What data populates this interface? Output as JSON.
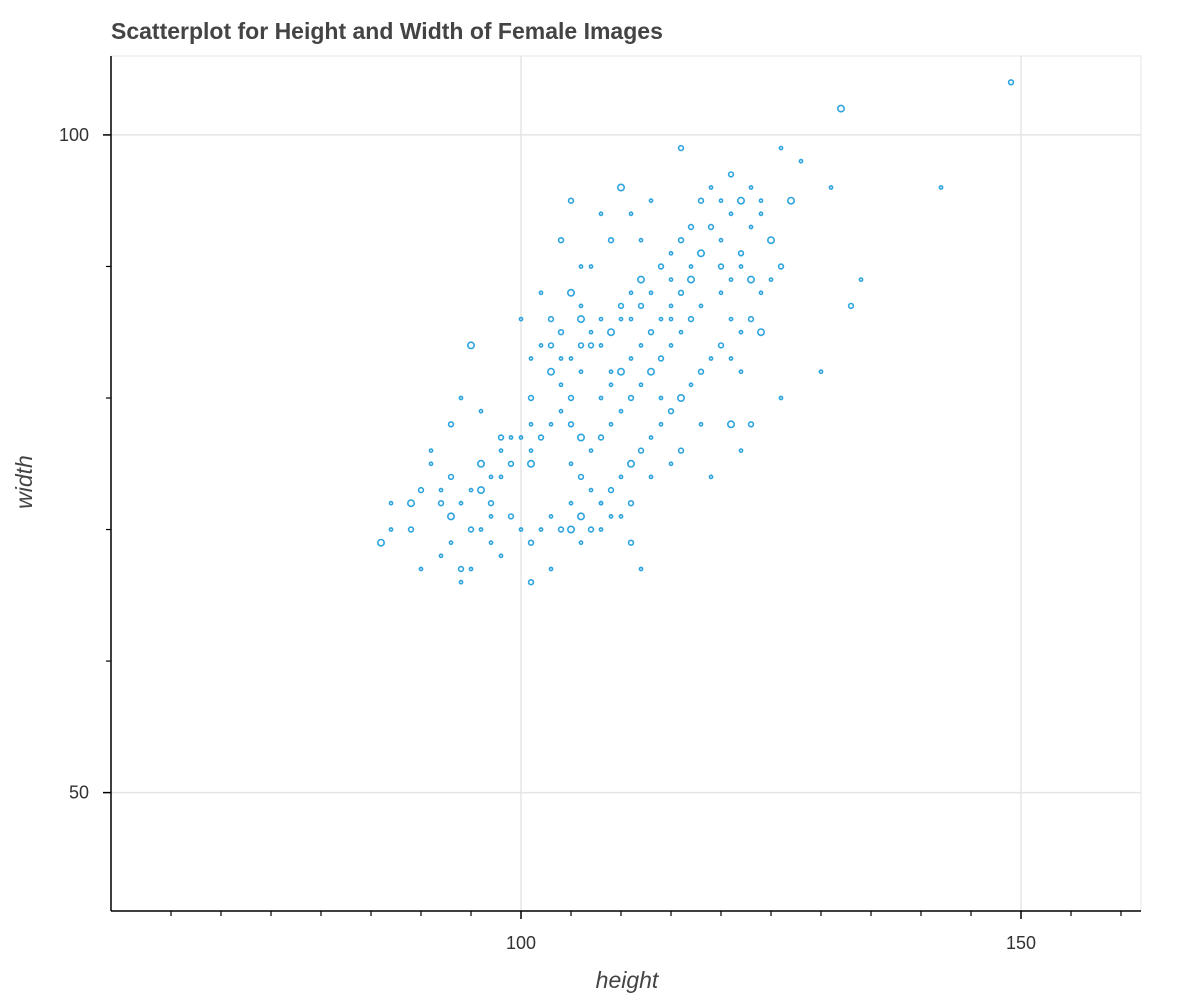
{
  "chart_data": {
    "type": "scatter",
    "title": "Scatterplot for Height and Width of Female Images",
    "xlabel": "height",
    "ylabel": "width",
    "xlim": [
      59,
      162
    ],
    "ylim": [
      41,
      106
    ],
    "x_major_ticks": [
      100,
      150
    ],
    "x_tick_labels": [
      "100",
      "150"
    ],
    "x_minor_ticks": [
      65,
      70,
      75,
      80,
      85,
      90,
      95,
      105,
      110,
      115,
      120,
      125,
      130,
      135,
      140,
      145,
      155,
      160
    ],
    "y_major_ticks": [
      50,
      100
    ],
    "y_tick_labels": [
      "50",
      "100"
    ],
    "y_minor_ticks": [
      60,
      70,
      80,
      90,
      110,
      120
    ],
    "grid": true,
    "marker_color": "#2ea4de",
    "notes": "Dense clusters of overlapping circles between heights ~93-122 and widths ~72-96",
    "points": [
      [
        86,
        69
      ],
      [
        87,
        72
      ],
      [
        87,
        70
      ],
      [
        89,
        70
      ],
      [
        90,
        67
      ],
      [
        92,
        68
      ],
      [
        92,
        72
      ],
      [
        93,
        71
      ],
      [
        93,
        69
      ],
      [
        94,
        67
      ],
      [
        94,
        66
      ],
      [
        95,
        67
      ],
      [
        95,
        70
      ],
      [
        96,
        70
      ],
      [
        96,
        73
      ],
      [
        97,
        72
      ],
      [
        97,
        71
      ],
      [
        98,
        74
      ],
      [
        98,
        77
      ],
      [
        99,
        77
      ],
      [
        100,
        77
      ],
      [
        101,
        75
      ],
      [
        101,
        76
      ],
      [
        101,
        78
      ],
      [
        101,
        80
      ],
      [
        101,
        83
      ],
      [
        102,
        84
      ],
      [
        103,
        84
      ],
      [
        103,
        82
      ],
      [
        104,
        83
      ],
      [
        104,
        85
      ],
      [
        104,
        81
      ],
      [
        105,
        83
      ],
      [
        105,
        80
      ],
      [
        106,
        82
      ],
      [
        106,
        86
      ],
      [
        106,
        84
      ],
      [
        106,
        87
      ],
      [
        107,
        85
      ],
      [
        107,
        84
      ],
      [
        108,
        86
      ],
      [
        108,
        84
      ],
      [
        109,
        85
      ],
      [
        109,
        82
      ],
      [
        110,
        86
      ],
      [
        110,
        87
      ],
      [
        111,
        86
      ],
      [
        111,
        88
      ],
      [
        112,
        87
      ],
      [
        112,
        89
      ],
      [
        113,
        88
      ],
      [
        114,
        90
      ],
      [
        115,
        91
      ],
      [
        115,
        89
      ],
      [
        116,
        92
      ],
      [
        117,
        90
      ],
      [
        118,
        91
      ],
      [
        119,
        93
      ],
      [
        120,
        92
      ],
      [
        121,
        94
      ],
      [
        122,
        91
      ],
      [
        123,
        93
      ],
      [
        124,
        94
      ],
      [
        125,
        92
      ],
      [
        120,
        88
      ],
      [
        118,
        87
      ],
      [
        117,
        86
      ],
      [
        116,
        85
      ],
      [
        115,
        84
      ],
      [
        114,
        83
      ],
      [
        113,
        82
      ],
      [
        112,
        81
      ],
      [
        111,
        80
      ],
      [
        110,
        79
      ],
      [
        109,
        78
      ],
      [
        108,
        77
      ],
      [
        107,
        76
      ],
      [
        106,
        77
      ],
      [
        105,
        78
      ],
      [
        104,
        79
      ],
      [
        103,
        78
      ],
      [
        102,
        77
      ],
      [
        108,
        80
      ],
      [
        109,
        81
      ],
      [
        110,
        82
      ],
      [
        111,
        83
      ],
      [
        112,
        84
      ],
      [
        113,
        85
      ],
      [
        114,
        86
      ],
      [
        115,
        87
      ],
      [
        116,
        88
      ],
      [
        117,
        89
      ],
      [
        105,
        75
      ],
      [
        106,
        74
      ],
      [
        107,
        73
      ],
      [
        108,
        72
      ],
      [
        109,
        73
      ],
      [
        110,
        74
      ],
      [
        111,
        75
      ],
      [
        112,
        76
      ],
      [
        113,
        77
      ],
      [
        114,
        78
      ],
      [
        99,
        75
      ],
      [
        98,
        76
      ],
      [
        97,
        74
      ],
      [
        96,
        75
      ],
      [
        95,
        73
      ],
      [
        94,
        72
      ],
      [
        93,
        74
      ],
      [
        92,
        73
      ],
      [
        91,
        75
      ],
      [
        90,
        73
      ],
      [
        89,
        72
      ],
      [
        100,
        70
      ],
      [
        101,
        69
      ],
      [
        102,
        70
      ],
      [
        103,
        71
      ],
      [
        104,
        70
      ],
      [
        105,
        72
      ],
      [
        106,
        71
      ],
      [
        107,
        70
      ],
      [
        108,
        72
      ],
      [
        109,
        71
      ],
      [
        120,
        90
      ],
      [
        121,
        89
      ],
      [
        122,
        90
      ],
      [
        123,
        89
      ],
      [
        124,
        88
      ],
      [
        125,
        89
      ],
      [
        126,
        90
      ],
      [
        121,
        86
      ],
      [
        122,
        85
      ],
      [
        123,
        86
      ],
      [
        124,
        85
      ],
      [
        119,
        83
      ],
      [
        120,
        84
      ],
      [
        121,
        83
      ],
      [
        122,
        82
      ],
      [
        118,
        82
      ],
      [
        117,
        81
      ],
      [
        116,
        80
      ],
      [
        115,
        79
      ],
      [
        114,
        80
      ],
      [
        119,
        96
      ],
      [
        121,
        97
      ],
      [
        123,
        96
      ],
      [
        124,
        95
      ],
      [
        127,
        95
      ],
      [
        128,
        98
      ],
      [
        131,
        96
      ],
      [
        133,
        87
      ],
      [
        134,
        89
      ],
      [
        142,
        96
      ],
      [
        149,
        104
      ],
      [
        132,
        102
      ],
      [
        126,
        99
      ],
      [
        116,
        99
      ],
      [
        126,
        80
      ],
      [
        130,
        82
      ],
      [
        118,
        95
      ],
      [
        112,
        92
      ],
      [
        110,
        96
      ],
      [
        105,
        95
      ],
      [
        102,
        88
      ],
      [
        106,
        90
      ],
      [
        104,
        92
      ],
      [
        108,
        94
      ],
      [
        115,
        86
      ],
      [
        95,
        84
      ],
      [
        96,
        79
      ],
      [
        94,
        80
      ],
      [
        93,
        78
      ],
      [
        91,
        76
      ],
      [
        100,
        86
      ],
      [
        103,
        86
      ],
      [
        105,
        88
      ],
      [
        107,
        90
      ],
      [
        109,
        92
      ],
      [
        111,
        94
      ],
      [
        113,
        95
      ],
      [
        117,
        93
      ],
      [
        120,
        95
      ],
      [
        122,
        95
      ],
      [
        101,
        66
      ],
      [
        103,
        67
      ],
      [
        112,
        67
      ],
      [
        111,
        69
      ],
      [
        108,
        70
      ],
      [
        106,
        69
      ],
      [
        105,
        70
      ],
      [
        98,
        68
      ],
      [
        97,
        69
      ],
      [
        99,
        71
      ],
      [
        119,
        74
      ],
      [
        122,
        76
      ],
      [
        123,
        78
      ],
      [
        121,
        78
      ],
      [
        118,
        78
      ],
      [
        116,
        76
      ],
      [
        115,
        75
      ],
      [
        113,
        74
      ],
      [
        111,
        72
      ],
      [
        110,
        71
      ]
    ]
  }
}
